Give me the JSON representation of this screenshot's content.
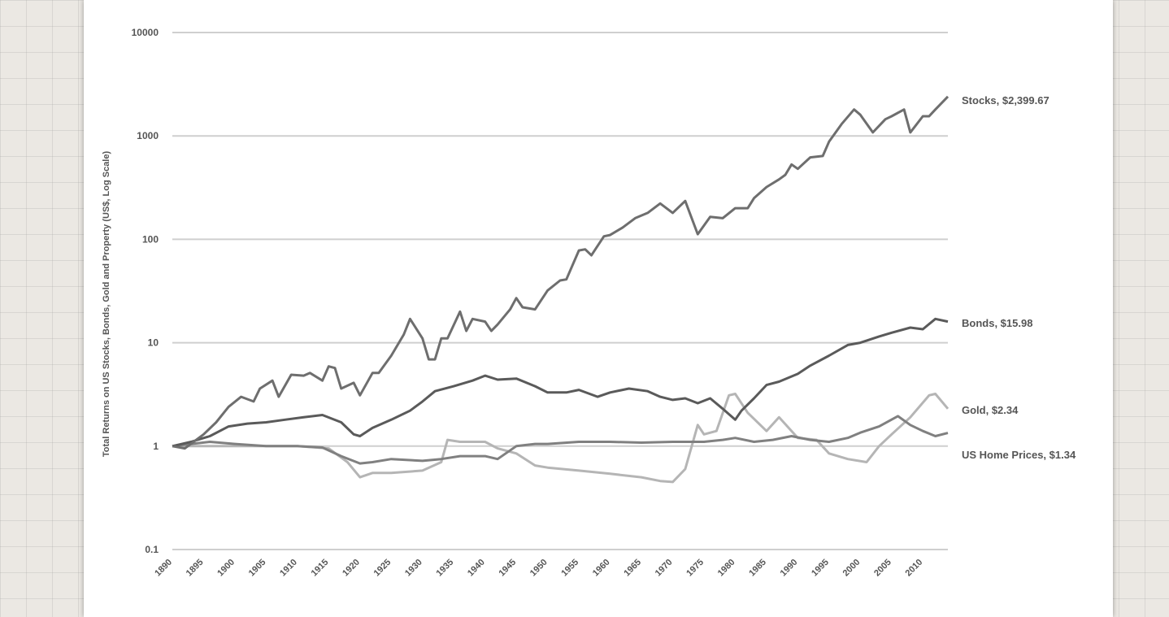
{
  "chart_data": {
    "type": "line",
    "title": "",
    "xlabel": "",
    "ylabel": "Total Returns on US Stocks, Bonds, Gold and Property (US$, Log Scale)",
    "yscale": "log",
    "ylim": [
      0.1,
      10000
    ],
    "xlim": [
      1890,
      2014
    ],
    "grid": "horizontal",
    "ytick_labels": [
      "0.1",
      "1",
      "10",
      "100",
      "1000",
      "10000"
    ],
    "ytick_values": [
      0.1,
      1,
      10,
      100,
      1000,
      10000
    ],
    "xtick_labels": [
      "1890",
      "1895",
      "1900",
      "1905",
      "1910",
      "1915",
      "1920",
      "1925",
      "1930",
      "1935",
      "1940",
      "1945",
      "1950",
      "1955",
      "1960",
      "1965",
      "1970",
      "1975",
      "1980",
      "1985",
      "1990",
      "1995",
      "2000",
      "2005",
      "2010"
    ],
    "series": [
      {
        "key": "stocks",
        "label": "Stocks, $2,399.67",
        "color": "#6e6e6e",
        "points": [
          [
            1890,
            1
          ],
          [
            1892,
            0.95
          ],
          [
            1895,
            1.3
          ],
          [
            1897,
            1.7
          ],
          [
            1899,
            2.4
          ],
          [
            1901,
            3.0
          ],
          [
            1903,
            2.7
          ],
          [
            1904,
            3.6
          ],
          [
            1906,
            4.3
          ],
          [
            1907,
            3.0
          ],
          [
            1909,
            4.9
          ],
          [
            1911,
            4.8
          ],
          [
            1912,
            5.1
          ],
          [
            1914,
            4.3
          ],
          [
            1915,
            5.9
          ],
          [
            1916,
            5.7
          ],
          [
            1917,
            3.6
          ],
          [
            1919,
            4.1
          ],
          [
            1920,
            3.1
          ],
          [
            1922,
            5.1
          ],
          [
            1923,
            5.1
          ],
          [
            1925,
            7.5
          ],
          [
            1927,
            12
          ],
          [
            1928,
            17
          ],
          [
            1930,
            11
          ],
          [
            1931,
            6.9
          ],
          [
            1932,
            6.9
          ],
          [
            1933,
            11
          ],
          [
            1934,
            11
          ],
          [
            1936,
            20
          ],
          [
            1937,
            13
          ],
          [
            1938,
            17
          ],
          [
            1940,
            16
          ],
          [
            1941,
            13
          ],
          [
            1942,
            15
          ],
          [
            1944,
            21
          ],
          [
            1945,
            27
          ],
          [
            1946,
            22
          ],
          [
            1948,
            21
          ],
          [
            1950,
            32
          ],
          [
            1952,
            40
          ],
          [
            1953,
            41
          ],
          [
            1955,
            78
          ],
          [
            1956,
            80
          ],
          [
            1957,
            70
          ],
          [
            1959,
            107
          ],
          [
            1960,
            110
          ],
          [
            1962,
            130
          ],
          [
            1964,
            160
          ],
          [
            1966,
            180
          ],
          [
            1968,
            222
          ],
          [
            1970,
            180
          ],
          [
            1972,
            235
          ],
          [
            1974,
            112
          ],
          [
            1976,
            165
          ],
          [
            1978,
            160
          ],
          [
            1980,
            200
          ],
          [
            1982,
            200
          ],
          [
            1983,
            250
          ],
          [
            1985,
            320
          ],
          [
            1987,
            380
          ],
          [
            1988,
            420
          ],
          [
            1989,
            530
          ],
          [
            1990,
            480
          ],
          [
            1992,
            620
          ],
          [
            1994,
            640
          ],
          [
            1995,
            880
          ],
          [
            1997,
            1300
          ],
          [
            1999,
            1800
          ],
          [
            2000,
            1600
          ],
          [
            2002,
            1080
          ],
          [
            2004,
            1450
          ],
          [
            2005,
            1550
          ],
          [
            2007,
            1800
          ],
          [
            2008,
            1080
          ],
          [
            2010,
            1550
          ],
          [
            2011,
            1550
          ],
          [
            2012,
            1800
          ],
          [
            2014,
            2400
          ]
        ]
      },
      {
        "key": "bonds",
        "label": "Bonds, $15.98",
        "color": "#5a5a5a",
        "points": [
          [
            1890,
            1
          ],
          [
            1893,
            1.1
          ],
          [
            1896,
            1.25
          ],
          [
            1899,
            1.55
          ],
          [
            1902,
            1.65
          ],
          [
            1905,
            1.7
          ],
          [
            1908,
            1.8
          ],
          [
            1911,
            1.9
          ],
          [
            1914,
            2.0
          ],
          [
            1917,
            1.7
          ],
          [
            1919,
            1.3
          ],
          [
            1920,
            1.25
          ],
          [
            1922,
            1.5
          ],
          [
            1925,
            1.8
          ],
          [
            1928,
            2.2
          ],
          [
            1930,
            2.7
          ],
          [
            1932,
            3.4
          ],
          [
            1935,
            3.8
          ],
          [
            1938,
            4.3
          ],
          [
            1940,
            4.8
          ],
          [
            1942,
            4.4
          ],
          [
            1945,
            4.5
          ],
          [
            1948,
            3.8
          ],
          [
            1950,
            3.3
          ],
          [
            1953,
            3.3
          ],
          [
            1955,
            3.5
          ],
          [
            1958,
            3.0
          ],
          [
            1960,
            3.3
          ],
          [
            1963,
            3.6
          ],
          [
            1966,
            3.4
          ],
          [
            1968,
            3.0
          ],
          [
            1970,
            2.8
          ],
          [
            1972,
            2.9
          ],
          [
            1974,
            2.6
          ],
          [
            1976,
            2.9
          ],
          [
            1978,
            2.3
          ],
          [
            1980,
            1.8
          ],
          [
            1981,
            2.2
          ],
          [
            1983,
            2.9
          ],
          [
            1985,
            3.9
          ],
          [
            1987,
            4.2
          ],
          [
            1990,
            5.0
          ],
          [
            1992,
            6.0
          ],
          [
            1995,
            7.5
          ],
          [
            1998,
            9.5
          ],
          [
            2000,
            10
          ],
          [
            2003,
            11.5
          ],
          [
            2005,
            12.5
          ],
          [
            2008,
            14
          ],
          [
            2010,
            13.5
          ],
          [
            2012,
            17
          ],
          [
            2014,
            16
          ]
        ]
      },
      {
        "key": "gold",
        "label": "Gold, $2.34",
        "color": "#b5b5b5",
        "points": [
          [
            1890,
            1
          ],
          [
            1910,
            1
          ],
          [
            1915,
            0.95
          ],
          [
            1918,
            0.7
          ],
          [
            1920,
            0.5
          ],
          [
            1922,
            0.55
          ],
          [
            1925,
            0.55
          ],
          [
            1930,
            0.58
          ],
          [
            1933,
            0.7
          ],
          [
            1934,
            1.15
          ],
          [
            1936,
            1.1
          ],
          [
            1940,
            1.1
          ],
          [
            1942,
            0.95
          ],
          [
            1945,
            0.85
          ],
          [
            1948,
            0.65
          ],
          [
            1950,
            0.62
          ],
          [
            1955,
            0.58
          ],
          [
            1960,
            0.54
          ],
          [
            1965,
            0.5
          ],
          [
            1968,
            0.46
          ],
          [
            1970,
            0.45
          ],
          [
            1972,
            0.6
          ],
          [
            1974,
            1.6
          ],
          [
            1975,
            1.3
          ],
          [
            1977,
            1.4
          ],
          [
            1979,
            3.1
          ],
          [
            1980,
            3.2
          ],
          [
            1982,
            2.1
          ],
          [
            1985,
            1.4
          ],
          [
            1987,
            1.9
          ],
          [
            1990,
            1.2
          ],
          [
            1993,
            1.15
          ],
          [
            1995,
            0.85
          ],
          [
            1998,
            0.75
          ],
          [
            2001,
            0.7
          ],
          [
            2003,
            1.0
          ],
          [
            2005,
            1.3
          ],
          [
            2008,
            1.9
          ],
          [
            2011,
            3.1
          ],
          [
            2012,
            3.2
          ],
          [
            2014,
            2.3
          ]
        ]
      },
      {
        "key": "home",
        "label": "US Home Prices, $1.34",
        "color": "#808080",
        "points": [
          [
            1890,
            1
          ],
          [
            1893,
            1.05
          ],
          [
            1896,
            1.1
          ],
          [
            1900,
            1.05
          ],
          [
            1905,
            1.0
          ],
          [
            1910,
            1.0
          ],
          [
            1914,
            0.97
          ],
          [
            1917,
            0.8
          ],
          [
            1920,
            0.68
          ],
          [
            1922,
            0.7
          ],
          [
            1925,
            0.75
          ],
          [
            1930,
            0.72
          ],
          [
            1933,
            0.75
          ],
          [
            1936,
            0.8
          ],
          [
            1940,
            0.8
          ],
          [
            1942,
            0.75
          ],
          [
            1945,
            1.0
          ],
          [
            1948,
            1.05
          ],
          [
            1950,
            1.05
          ],
          [
            1955,
            1.1
          ],
          [
            1960,
            1.1
          ],
          [
            1965,
            1.08
          ],
          [
            1970,
            1.1
          ],
          [
            1975,
            1.1
          ],
          [
            1978,
            1.15
          ],
          [
            1980,
            1.2
          ],
          [
            1983,
            1.1
          ],
          [
            1986,
            1.15
          ],
          [
            1989,
            1.25
          ],
          [
            1992,
            1.15
          ],
          [
            1995,
            1.1
          ],
          [
            1998,
            1.2
          ],
          [
            2000,
            1.35
          ],
          [
            2003,
            1.55
          ],
          [
            2006,
            1.95
          ],
          [
            2008,
            1.6
          ],
          [
            2010,
            1.4
          ],
          [
            2012,
            1.25
          ],
          [
            2014,
            1.34
          ]
        ]
      }
    ]
  }
}
